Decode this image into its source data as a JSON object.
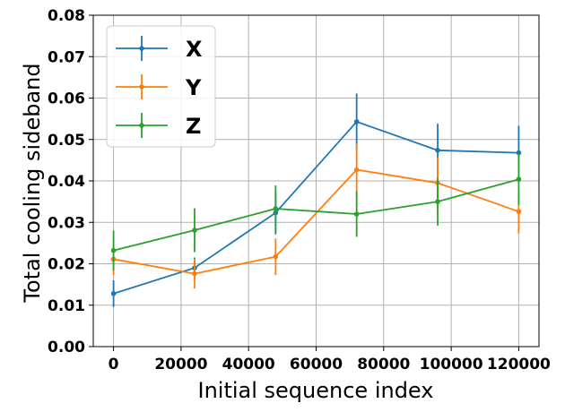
{
  "chart_data": {
    "type": "line",
    "xlabel": "Initial sequence index",
    "ylabel": "Total cooling sideband",
    "xlim": [
      -6000,
      126000
    ],
    "ylim": [
      0,
      0.08
    ],
    "xticks": [
      0,
      20000,
      40000,
      60000,
      80000,
      100000,
      120000
    ],
    "xtick_labels": [
      "0",
      "20000",
      "40000",
      "60000",
      "80000",
      "100000",
      "120000"
    ],
    "yticks": [
      0,
      0.01,
      0.02,
      0.03,
      0.04,
      0.05,
      0.06,
      0.07,
      0.08
    ],
    "ytick_labels": [
      "0.00",
      "0.01",
      "0.02",
      "0.03",
      "0.04",
      "0.05",
      "0.06",
      "0.07",
      "0.08"
    ],
    "grid": true,
    "legend_position": "top-left",
    "x": [
      0,
      24000,
      48000,
      72000,
      96000,
      120000
    ],
    "series": [
      {
        "name": "X",
        "color": "#1f77b4",
        "values": [
          0.0128,
          0.019,
          0.0323,
          0.0543,
          0.0474,
          0.0468
        ],
        "errors": [
          0.0032,
          0.0025,
          0.0052,
          0.0068,
          0.0064,
          0.0065
        ]
      },
      {
        "name": "Y",
        "color": "#ff7f0e",
        "values": [
          0.0211,
          0.0176,
          0.0217,
          0.0427,
          0.0395,
          0.0326
        ],
        "errors": [
          0.0038,
          0.0036,
          0.0044,
          0.0063,
          0.0062,
          0.0053
        ]
      },
      {
        "name": "Z",
        "color": "#2ca02c",
        "values": [
          0.0232,
          0.0281,
          0.0333,
          0.032,
          0.035,
          0.0404
        ],
        "errors": [
          0.0048,
          0.0053,
          0.0056,
          0.0055,
          0.0058,
          0.0062
        ]
      }
    ]
  }
}
